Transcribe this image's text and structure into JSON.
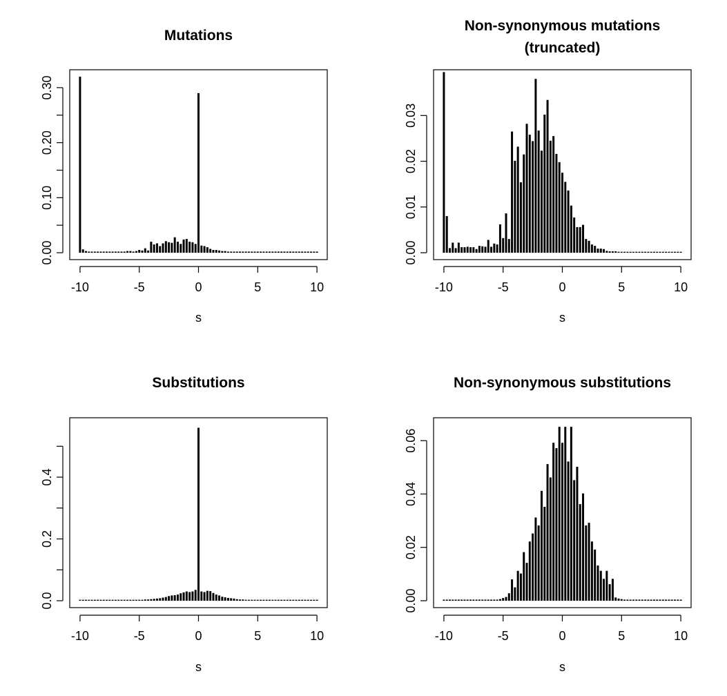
{
  "chart_data": [
    {
      "type": "bar",
      "title": [
        "Mutations"
      ],
      "xlabel": "s",
      "ylabel": "",
      "xlim": [
        -10,
        10
      ],
      "ylim": [
        0,
        0.32
      ],
      "xticks": [
        -10,
        -5,
        0,
        5,
        10
      ],
      "xtick_labels": [
        "-10",
        "-5",
        "0",
        "5",
        "10"
      ],
      "yticks": [
        0.0,
        0.05,
        0.1,
        0.15,
        0.2,
        0.25,
        0.3
      ],
      "ytick_labels": [
        "0.00",
        "",
        "0.10",
        "",
        "0.20",
        "",
        "0.30"
      ],
      "x": [
        -10,
        -9.75,
        -9.5,
        -9.25,
        -9,
        -8.75,
        -8.5,
        -8.25,
        -8,
        -7.75,
        -7.5,
        -7.25,
        -7,
        -6.75,
        -6.5,
        -6.25,
        -6,
        -5.75,
        -5.5,
        -5.25,
        -5,
        -4.75,
        -4.5,
        -4.25,
        -4,
        -3.75,
        -3.5,
        -3.25,
        -3,
        -2.75,
        -2.5,
        -2.25,
        -2,
        -1.75,
        -1.5,
        -1.25,
        -1,
        -0.75,
        -0.5,
        -0.25,
        0,
        0.25,
        0.5,
        0.75,
        1,
        1.25,
        1.5,
        1.75,
        2,
        2.25,
        2.5,
        2.75,
        3,
        3.25,
        3.5,
        3.75,
        4,
        4.25,
        4.5,
        4.75,
        5,
        5.25,
        5.5,
        5.75,
        6,
        6.25,
        6.5,
        6.75,
        7,
        7.25,
        7.5,
        7.75,
        8,
        8.25,
        8.5,
        8.75,
        9,
        9.25,
        9.5,
        9.75,
        10
      ],
      "values": [
        0.32,
        0.006,
        0.003,
        0.002,
        0.002,
        0.002,
        0.002,
        0.002,
        0.002,
        0.002,
        0.002,
        0.002,
        0.002,
        0.002,
        0.002,
        0.002,
        0.003,
        0.003,
        0.002,
        0.003,
        0.005,
        0.004,
        0.008,
        0.004,
        0.02,
        0.015,
        0.017,
        0.012,
        0.017,
        0.021,
        0.019,
        0.018,
        0.028,
        0.02,
        0.016,
        0.024,
        0.025,
        0.02,
        0.019,
        0.016,
        0.29,
        0.013,
        0.012,
        0.01,
        0.007,
        0.005,
        0.005,
        0.004,
        0.003,
        0.003,
        0.002,
        0.002,
        0.002,
        0.002,
        0.002,
        0.002,
        0.002,
        0.002,
        0.002,
        0.002,
        0.002,
        0.002,
        0.002,
        0.002,
        0.002,
        0.002,
        0.002,
        0.002,
        0.002,
        0.002,
        0.002,
        0.002,
        0.002,
        0.002,
        0.002,
        0.002,
        0.002,
        0.002,
        0.002,
        0.002,
        0.002
      ]
    },
    {
      "type": "bar",
      "title": [
        "Non-synonymous mutations",
        "(truncated)"
      ],
      "xlabel": "s",
      "ylabel": "",
      "xlim": [
        -10,
        10
      ],
      "ylim": [
        0,
        0.0385
      ],
      "xticks": [
        -10,
        -5,
        0,
        5,
        10
      ],
      "xtick_labels": [
        "-10",
        "-5",
        "0",
        "5",
        "10"
      ],
      "yticks": [
        0.0,
        0.01,
        0.02,
        0.03
      ],
      "ytick_labels": [
        "0.00",
        "0.01",
        "0.02",
        "0.03"
      ],
      "x": [
        -10,
        -9.75,
        -9.5,
        -9.25,
        -9,
        -8.75,
        -8.5,
        -8.25,
        -8,
        -7.75,
        -7.5,
        -7.25,
        -7,
        -6.75,
        -6.5,
        -6.25,
        -6,
        -5.75,
        -5.5,
        -5.25,
        -5,
        -4.75,
        -4.5,
        -4.25,
        -4,
        -3.75,
        -3.5,
        -3.25,
        -3,
        -2.75,
        -2.5,
        -2.25,
        -2,
        -1.75,
        -1.5,
        -1.25,
        -1,
        -0.75,
        -0.5,
        -0.25,
        0,
        0.25,
        0.5,
        0.75,
        1,
        1.25,
        1.5,
        1.75,
        2,
        2.25,
        2.5,
        2.75,
        3,
        3.25,
        3.5,
        3.75,
        4,
        4.25,
        4.5,
        4.75,
        5,
        5.25,
        5.5,
        5.75,
        6,
        6.25,
        6.5,
        6.75,
        7,
        7.25,
        7.5,
        7.75,
        8,
        8.25,
        8.5,
        8.75,
        9,
        9.25,
        9.5,
        9.75,
        10
      ],
      "values": [
        0.0395,
        0.008,
        0.001,
        0.0022,
        0.001,
        0.0022,
        0.0012,
        0.0012,
        0.0013,
        0.0012,
        0.0012,
        0.0008,
        0.0015,
        0.0014,
        0.0013,
        0.0028,
        0.0013,
        0.002,
        0.0018,
        0.0062,
        0.0032,
        0.0086,
        0.003,
        0.0265,
        0.0201,
        0.0232,
        0.0154,
        0.0215,
        0.0282,
        0.0258,
        0.0244,
        0.038,
        0.0267,
        0.0223,
        0.0302,
        0.0334,
        0.0245,
        0.0255,
        0.0216,
        0.0198,
        0.0175,
        0.0155,
        0.0136,
        0.0103,
        0.0077,
        0.0056,
        0.0056,
        0.0061,
        0.003,
        0.0026,
        0.0018,
        0.0015,
        0.0009,
        0.0009,
        0.0008,
        0.0004,
        0.0003,
        0.0003,
        0.0003,
        0.0002,
        0.0002,
        0.0002,
        0.0002,
        0.0002,
        0.0002,
        0.0002,
        0.0002,
        0.0002,
        0.0002,
        0.0002,
        0.0002,
        0.0002,
        0.0002,
        0.0002,
        0.0002,
        0.0002,
        0.0002,
        0.0002,
        0.0002,
        0.0002,
        0.0002
      ]
    },
    {
      "type": "bar",
      "title": [
        "Substitutions"
      ],
      "xlabel": "s",
      "ylabel": "",
      "xlim": [
        -10,
        10
      ],
      "ylim": [
        0,
        0.57
      ],
      "xticks": [
        -10,
        -5,
        0,
        5,
        10
      ],
      "xtick_labels": [
        "-10",
        "-5",
        "0",
        "5",
        "10"
      ],
      "yticks": [
        0.0,
        0.1,
        0.2,
        0.3,
        0.4,
        0.5
      ],
      "ytick_labels": [
        "0.0",
        "",
        "0.2",
        "",
        "0.4",
        ""
      ],
      "x": [
        -10,
        -9.75,
        -9.5,
        -9.25,
        -9,
        -8.75,
        -8.5,
        -8.25,
        -8,
        -7.75,
        -7.5,
        -7.25,
        -7,
        -6.75,
        -6.5,
        -6.25,
        -6,
        -5.75,
        -5.5,
        -5.25,
        -5,
        -4.75,
        -4.5,
        -4.25,
        -4,
        -3.75,
        -3.5,
        -3.25,
        -3,
        -2.75,
        -2.5,
        -2.25,
        -2,
        -1.75,
        -1.5,
        -1.25,
        -1,
        -0.75,
        -0.5,
        -0.25,
        0,
        0.25,
        0.5,
        0.75,
        1,
        1.25,
        1.5,
        1.75,
        2,
        2.25,
        2.5,
        2.75,
        3,
        3.25,
        3.5,
        3.75,
        4,
        4.25,
        4.5,
        4.75,
        5,
        5.25,
        5.5,
        5.75,
        6,
        6.25,
        6.5,
        6.75,
        7,
        7.25,
        7.5,
        7.75,
        8,
        8.25,
        8.5,
        8.75,
        9,
        9.25,
        9.5,
        9.75,
        10
      ],
      "values": [
        0.003,
        0.003,
        0.003,
        0.003,
        0.003,
        0.003,
        0.003,
        0.003,
        0.003,
        0.003,
        0.003,
        0.003,
        0.003,
        0.003,
        0.003,
        0.003,
        0.003,
        0.003,
        0.003,
        0.003,
        0.003,
        0.003,
        0.004,
        0.004,
        0.005,
        0.006,
        0.007,
        0.008,
        0.01,
        0.012,
        0.015,
        0.017,
        0.018,
        0.02,
        0.024,
        0.027,
        0.03,
        0.028,
        0.03,
        0.035,
        0.56,
        0.03,
        0.028,
        0.032,
        0.031,
        0.025,
        0.02,
        0.017,
        0.013,
        0.011,
        0.009,
        0.008,
        0.007,
        0.005,
        0.004,
        0.004,
        0.003,
        0.003,
        0.003,
        0.003,
        0.003,
        0.003,
        0.003,
        0.003,
        0.003,
        0.003,
        0.003,
        0.003,
        0.003,
        0.003,
        0.003,
        0.003,
        0.003,
        0.003,
        0.003,
        0.003,
        0.003,
        0.003,
        0.003,
        0.003,
        0.003
      ]
    },
    {
      "type": "bar",
      "title": [
        "Non-synonymous substitutions"
      ],
      "xlabel": "s",
      "ylabel": "",
      "xlim": [
        -10,
        10
      ],
      "ylim": [
        0,
        0.066
      ],
      "xticks": [
        -10,
        -5,
        0,
        5,
        10
      ],
      "xtick_labels": [
        "-10",
        "-5",
        "0",
        "5",
        "10"
      ],
      "yticks": [
        0.0,
        0.02,
        0.04,
        0.06
      ],
      "ytick_labels": [
        "0.00",
        "0.02",
        "0.04",
        "0.06"
      ],
      "x": [
        -10,
        -9.75,
        -9.5,
        -9.25,
        -9,
        -8.75,
        -8.5,
        -8.25,
        -8,
        -7.75,
        -7.5,
        -7.25,
        -7,
        -6.75,
        -6.5,
        -6.25,
        -6,
        -5.75,
        -5.5,
        -5.25,
        -5,
        -4.75,
        -4.5,
        -4.25,
        -4,
        -3.75,
        -3.5,
        -3.25,
        -3,
        -2.75,
        -2.5,
        -2.25,
        -2,
        -1.75,
        -1.5,
        -1.25,
        -1,
        -0.75,
        -0.5,
        -0.25,
        0,
        0.25,
        0.5,
        0.75,
        1,
        1.25,
        1.5,
        1.75,
        2,
        2.25,
        2.5,
        2.75,
        3,
        3.25,
        3.5,
        3.75,
        4,
        4.25,
        4.5,
        4.75,
        5,
        5.25,
        5.5,
        5.75,
        6,
        6.25,
        6.5,
        6.75,
        7,
        7.25,
        7.5,
        7.75,
        8,
        8.25,
        8.5,
        8.75,
        9,
        9.25,
        9.5,
        9.75,
        10
      ],
      "values": [
        0.0004,
        0.0004,
        0.0004,
        0.0004,
        0.0004,
        0.0004,
        0.0004,
        0.0004,
        0.0004,
        0.0004,
        0.0004,
        0.0004,
        0.0004,
        0.0004,
        0.0004,
        0.0004,
        0.0004,
        0.0004,
        0.0004,
        0.0006,
        0.001,
        0.0014,
        0.0028,
        0.008,
        0.005,
        0.0112,
        0.0102,
        0.0182,
        0.0142,
        0.0222,
        0.0252,
        0.0312,
        0.0282,
        0.0412,
        0.0352,
        0.0512,
        0.0462,
        0.0592,
        0.0572,
        0.0652,
        0.0592,
        0.0652,
        0.0522,
        0.0652,
        0.0452,
        0.0502,
        0.0362,
        0.0402,
        0.0282,
        0.0292,
        0.0222,
        0.0192,
        0.0132,
        0.0112,
        0.0082,
        0.0112,
        0.0062,
        0.0082,
        0.0012,
        0.0008,
        0.0006,
        0.0004,
        0.0004,
        0.0004,
        0.0004,
        0.0004,
        0.0004,
        0.0004,
        0.0004,
        0.0004,
        0.0004,
        0.0004,
        0.0004,
        0.0004,
        0.0004,
        0.0004,
        0.0004,
        0.0004,
        0.0004,
        0.0004,
        0.0004
      ]
    }
  ]
}
